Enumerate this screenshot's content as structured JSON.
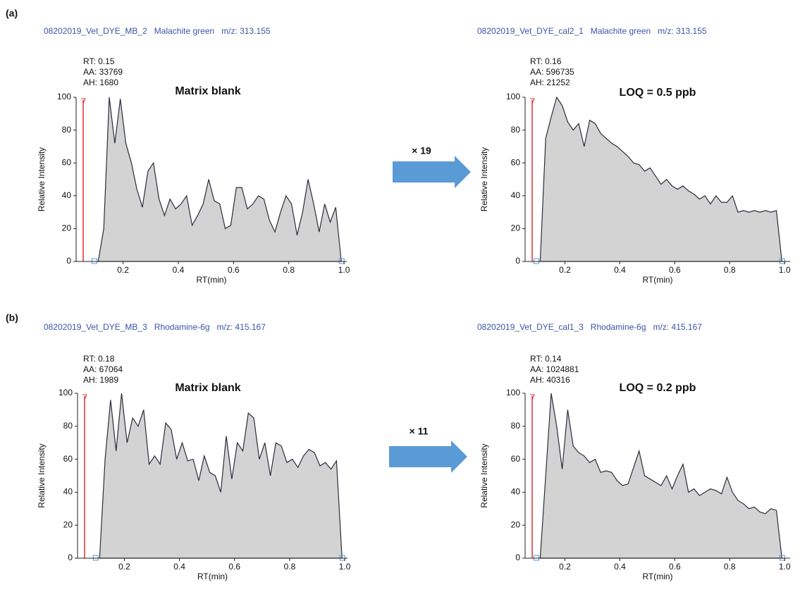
{
  "panels": [
    {
      "label": "(a)",
      "factor": "× 19"
    },
    {
      "label": "(b)",
      "factor": "× 11"
    }
  ],
  "chart_data": [
    {
      "type": "area",
      "title": "08202019_Vet_DYE_MB_2   Malachite green   m/z: 313.155",
      "annotations": [
        "RT: 0.15",
        "AA: 33769",
        "AH: 1680"
      ],
      "label": "Matrix blank",
      "xlabel": "RT(min)",
      "ylabel": "Relative Intensity",
      "color": "#d3d3d3",
      "line_color": "#2a2d3a",
      "xlim": [
        0.03,
        1.01
      ],
      "ylim": [
        0,
        100
      ],
      "xticks": [
        0.2,
        0.4,
        0.6,
        0.8,
        {
          "value": 1,
          "label": "1.0"
        }
      ],
      "yticks": [
        0,
        20,
        40,
        60,
        80,
        100
      ],
      "x": [
        0.11,
        0.13,
        0.15,
        0.17,
        0.19,
        0.21,
        0.23,
        0.25,
        0.27,
        0.29,
        0.31,
        0.33,
        0.35,
        0.37,
        0.39,
        0.41,
        0.43,
        0.45,
        0.47,
        0.49,
        0.51,
        0.53,
        0.55,
        0.57,
        0.59,
        0.61,
        0.63,
        0.65,
        0.67,
        0.69,
        0.71,
        0.73,
        0.75,
        0.77,
        0.79,
        0.81,
        0.83,
        0.85,
        0.87,
        0.89,
        0.91,
        0.93,
        0.95,
        0.97,
        0.99
      ],
      "values": [
        0,
        20,
        100,
        72,
        99,
        72,
        60,
        44,
        33,
        55,
        60,
        38,
        28,
        38,
        32,
        35,
        40,
        22,
        28,
        35,
        50,
        37,
        35,
        20,
        22,
        45,
        45,
        32,
        35,
        40,
        38,
        25,
        18,
        30,
        40,
        35,
        16,
        30,
        50,
        35,
        18,
        35,
        24,
        33,
        0
      ]
    },
    {
      "type": "area",
      "title": "08202019_Vet_DYE_cal2_1   Malachite green   m/z: 313.155",
      "annotations": [
        "RT: 0.16",
        "AA: 596735",
        "AH: 21252"
      ],
      "label": "LOQ = 0.5 ppb",
      "xlabel": "RT(min)",
      "ylabel": "Relative Intensity",
      "color": "#d3d3d3",
      "line_color": "#2a2d3a",
      "xlim": [
        0.055,
        1.02
      ],
      "ylim": [
        0,
        100
      ],
      "xticks": [
        0.2,
        0.4,
        0.6,
        0.8,
        {
          "value": 1,
          "label": "1.0"
        }
      ],
      "yticks": [
        0,
        20,
        40,
        60,
        80,
        100
      ],
      "x": [
        0.11,
        0.13,
        0.15,
        0.17,
        0.19,
        0.21,
        0.23,
        0.25,
        0.27,
        0.29,
        0.31,
        0.33,
        0.35,
        0.37,
        0.39,
        0.41,
        0.43,
        0.45,
        0.47,
        0.49,
        0.51,
        0.53,
        0.55,
        0.57,
        0.59,
        0.61,
        0.63,
        0.65,
        0.67,
        0.69,
        0.71,
        0.73,
        0.75,
        0.77,
        0.79,
        0.81,
        0.83,
        0.85,
        0.87,
        0.89,
        0.91,
        0.93,
        0.95,
        0.97,
        0.99
      ],
      "values": [
        0,
        75,
        88,
        100,
        95,
        85,
        80,
        84,
        70,
        86,
        84,
        78,
        75,
        72,
        70,
        67,
        64,
        60,
        59,
        55,
        57,
        52,
        47,
        50,
        46,
        44,
        46,
        43,
        41,
        38,
        40,
        35,
        40,
        36,
        36,
        40,
        30,
        31,
        30,
        31,
        30,
        31,
        30,
        31,
        0
      ]
    },
    {
      "type": "area",
      "title": "08202019_Vet_DYE_MB_3   Rhodamine-6g   m/z: 415.167",
      "annotations": [
        "RT: 0.18",
        "AA: 67064",
        "AH: 1989"
      ],
      "label": "Matrix blank",
      "xlabel": "RT(min)",
      "ylabel": "Relative Intensity",
      "color": "#d3d3d3",
      "line_color": "#2a2d3a",
      "xlim": [
        0.03,
        1.01
      ],
      "ylim": [
        0,
        100
      ],
      "xticks": [
        0.2,
        0.4,
        0.6,
        0.8,
        {
          "value": 1,
          "label": "1.0"
        }
      ],
      "yticks": [
        0,
        20,
        40,
        60,
        80,
        100
      ],
      "x": [
        0.11,
        0.13,
        0.15,
        0.17,
        0.19,
        0.21,
        0.23,
        0.25,
        0.27,
        0.29,
        0.31,
        0.33,
        0.35,
        0.37,
        0.39,
        0.41,
        0.43,
        0.45,
        0.47,
        0.49,
        0.51,
        0.53,
        0.55,
        0.57,
        0.59,
        0.61,
        0.63,
        0.65,
        0.67,
        0.69,
        0.71,
        0.73,
        0.75,
        0.77,
        0.79,
        0.81,
        0.83,
        0.85,
        0.87,
        0.89,
        0.91,
        0.93,
        0.95,
        0.97,
        0.99
      ],
      "values": [
        0,
        60,
        96,
        65,
        100,
        70,
        85,
        80,
        90,
        57,
        62,
        57,
        82,
        78,
        60,
        70,
        59,
        60,
        47,
        62,
        52,
        50,
        40,
        74,
        48,
        70,
        65,
        88,
        85,
        60,
        70,
        50,
        70,
        68,
        58,
        60,
        55,
        62,
        66,
        64,
        56,
        58,
        54,
        59,
        0
      ]
    },
    {
      "type": "area",
      "title": "08202019_Vet_DYE_cal1_3   Rhodamine-6g   m/z: 415.167",
      "annotations": [
        "RT: 0.14",
        "AA: 1024881",
        "AH: 40316"
      ],
      "label": "LOQ = 0.2 ppb",
      "xlabel": "RT(min)",
      "ylabel": "Relative Intensity",
      "color": "#d3d3d3",
      "line_color": "#2a2d3a",
      "xlim": [
        0.055,
        1.02
      ],
      "ylim": [
        0,
        100
      ],
      "xticks": [
        0.2,
        0.4,
        0.6,
        0.8,
        {
          "value": 1,
          "label": "1.0"
        }
      ],
      "yticks": [
        0,
        20,
        40,
        60,
        80,
        100
      ],
      "x": [
        0.11,
        0.13,
        0.15,
        0.17,
        0.19,
        0.21,
        0.23,
        0.25,
        0.27,
        0.29,
        0.31,
        0.33,
        0.35,
        0.37,
        0.39,
        0.41,
        0.43,
        0.45,
        0.47,
        0.49,
        0.51,
        0.53,
        0.55,
        0.57,
        0.59,
        0.61,
        0.63,
        0.65,
        0.67,
        0.69,
        0.71,
        0.73,
        0.75,
        0.77,
        0.79,
        0.81,
        0.83,
        0.85,
        0.87,
        0.89,
        0.91,
        0.93,
        0.95,
        0.97,
        0.99
      ],
      "values": [
        0,
        50,
        100,
        80,
        54,
        90,
        68,
        64,
        62,
        58,
        60,
        52,
        53,
        52,
        47,
        44,
        45,
        55,
        65,
        50,
        48,
        46,
        44,
        50,
        42,
        50,
        57,
        40,
        42,
        38,
        40,
        42,
        41,
        39,
        49,
        40,
        35,
        33,
        30,
        31,
        28,
        27,
        30,
        29,
        0
      ]
    }
  ]
}
